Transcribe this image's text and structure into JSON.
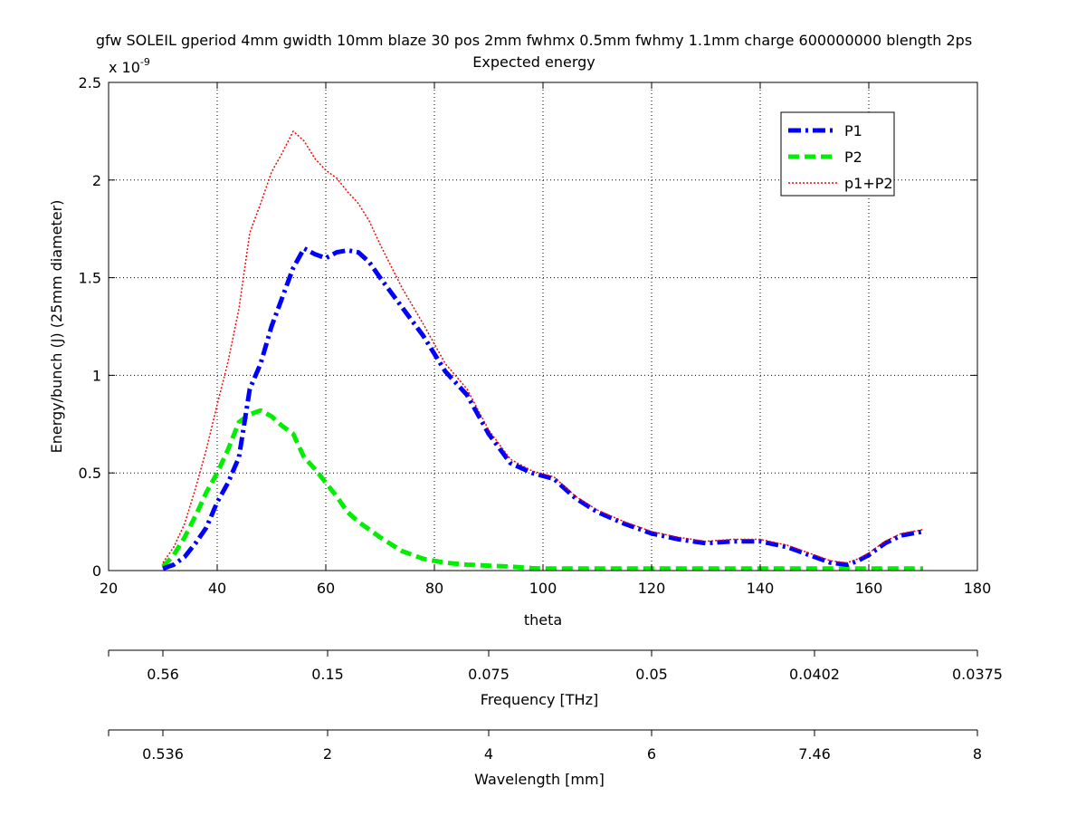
{
  "chart_data": {
    "type": "line",
    "title": "gfw SOLEIL gperiod 4mm gwidth 10mm blaze 30 pos 2mm fwhmx 0.5mm fwhmy 1.1mm charge 600000000 blength 2ps",
    "subtitle": "Expected energy",
    "xlabel": "theta",
    "ylabel": "Energy/bunch (J) (25mm diameter)",
    "y_exponent_label": "x 10",
    "y_exponent_power": "-9",
    "xlim": [
      20,
      180
    ],
    "ylim": [
      0,
      2.5
    ],
    "x_ticks": [
      "20",
      "40",
      "60",
      "80",
      "100",
      "120",
      "140",
      "160",
      "180"
    ],
    "y_ticks": [
      "0",
      "0.5",
      "1",
      "1.5",
      "2",
      "2.5"
    ],
    "grid": true,
    "legend_position": "top-right",
    "series": [
      {
        "name": "P1",
        "color": "#0000ff",
        "style": "dashdot",
        "x": [
          30,
          32,
          34,
          36,
          38,
          40,
          42,
          44,
          46,
          48,
          50,
          52,
          54,
          56,
          58,
          60,
          62,
          64,
          66,
          68,
          70,
          74,
          78,
          82,
          86,
          90,
          94,
          98,
          102,
          106,
          110,
          115,
          120,
          125,
          130,
          135,
          140,
          145,
          150,
          153,
          156,
          158,
          160,
          163,
          166,
          170
        ],
        "y": [
          0.01,
          0.03,
          0.07,
          0.14,
          0.22,
          0.35,
          0.45,
          0.58,
          0.93,
          1.06,
          1.25,
          1.4,
          1.55,
          1.65,
          1.62,
          1.6,
          1.63,
          1.64,
          1.63,
          1.58,
          1.5,
          1.35,
          1.2,
          1.02,
          0.9,
          0.7,
          0.55,
          0.5,
          0.47,
          0.37,
          0.3,
          0.24,
          0.19,
          0.16,
          0.14,
          0.15,
          0.15,
          0.12,
          0.07,
          0.04,
          0.03,
          0.05,
          0.08,
          0.14,
          0.18,
          0.2
        ]
      },
      {
        "name": "P2",
        "color": "#00ee00",
        "style": "dashed",
        "x": [
          30,
          32,
          34,
          36,
          38,
          40,
          42,
          44,
          46,
          48,
          50,
          52,
          54,
          56,
          58,
          60,
          62,
          64,
          66,
          68,
          70,
          74,
          78,
          82,
          86,
          90,
          94,
          98,
          100,
          105,
          110,
          120,
          130,
          140,
          150,
          160,
          170
        ],
        "y": [
          0.02,
          0.08,
          0.17,
          0.28,
          0.4,
          0.5,
          0.62,
          0.76,
          0.8,
          0.82,
          0.79,
          0.74,
          0.7,
          0.58,
          0.52,
          0.45,
          0.38,
          0.3,
          0.25,
          0.21,
          0.17,
          0.1,
          0.06,
          0.04,
          0.03,
          0.025,
          0.02,
          0.012,
          0.01,
          0.01,
          0.01,
          0.01,
          0.01,
          0.01,
          0.01,
          0.01,
          0.01
        ]
      },
      {
        "name": "p1+P2",
        "color": "#ff0000",
        "style": "dotted",
        "x": [
          30,
          32,
          34,
          36,
          38,
          40,
          42,
          44,
          46,
          48,
          50,
          52,
          54,
          56,
          58,
          60,
          62,
          64,
          66,
          68,
          70,
          74,
          78,
          82,
          86,
          90,
          94,
          98,
          102,
          106,
          110,
          115,
          120,
          125,
          130,
          135,
          140,
          145,
          150,
          153,
          156,
          158,
          160,
          163,
          166,
          170
        ],
        "y": [
          0.04,
          0.12,
          0.24,
          0.42,
          0.62,
          0.85,
          1.07,
          1.34,
          1.73,
          1.88,
          2.04,
          2.14,
          2.25,
          2.2,
          2.11,
          2.05,
          2.01,
          1.94,
          1.88,
          1.79,
          1.67,
          1.45,
          1.26,
          1.06,
          0.93,
          0.72,
          0.57,
          0.51,
          0.48,
          0.38,
          0.31,
          0.25,
          0.2,
          0.17,
          0.15,
          0.16,
          0.16,
          0.13,
          0.08,
          0.05,
          0.04,
          0.06,
          0.09,
          0.15,
          0.19,
          0.21
        ]
      }
    ],
    "secondary_axes": [
      {
        "label": "Frequency [THz]",
        "ticks": [
          "0.56",
          "0.15",
          "0.075",
          "0.05",
          "0.0402",
          "0.0375"
        ]
      },
      {
        "label": "Wavelength [mm]",
        "ticks": [
          "0.536",
          "2",
          "4",
          "6",
          "7.46",
          "8"
        ]
      }
    ]
  }
}
